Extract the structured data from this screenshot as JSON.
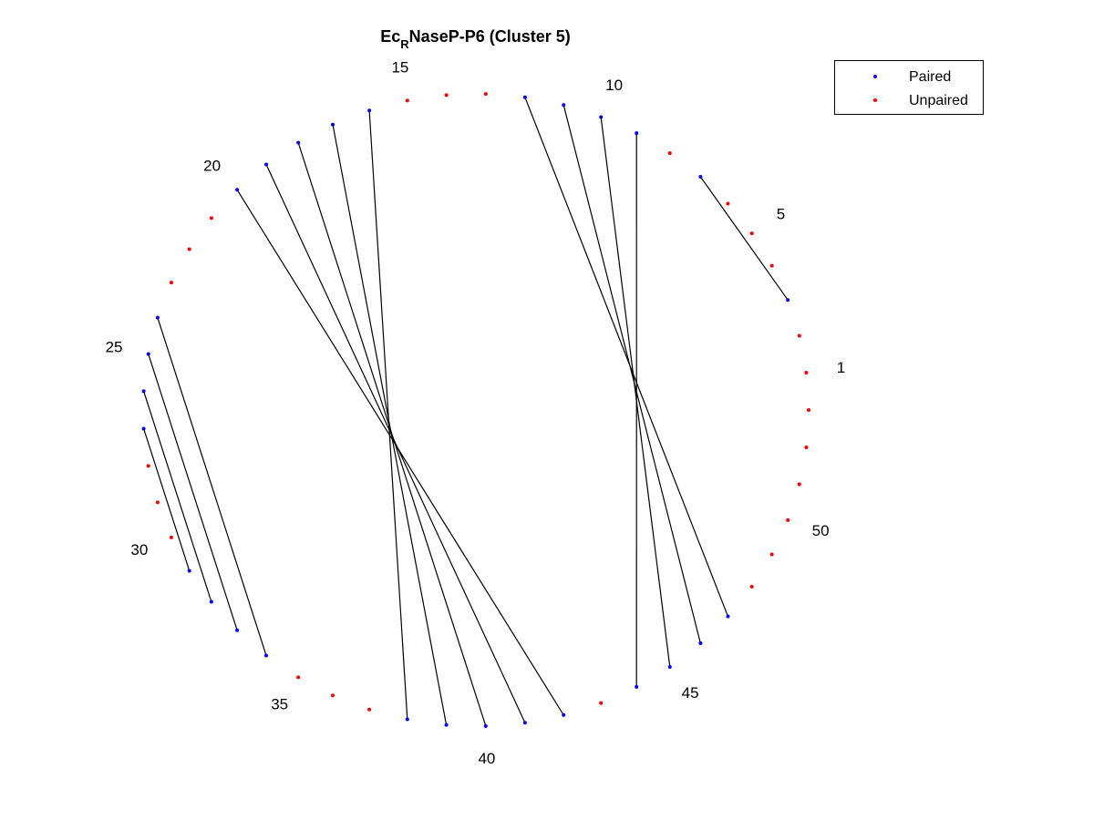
{
  "chart_data": {
    "type": "arc-diagram",
    "title_main": "Ec",
    "title_sub": "R",
    "title_rest": "NaseP-P6 (Cluster 5)",
    "legend": [
      {
        "label": "Paired",
        "color": "#0000ff"
      },
      {
        "label": "Unpaired",
        "color": "#ff0000"
      }
    ],
    "colors": {
      "paired": "#0000ff",
      "unpaired": "#ff0000",
      "line": "#000000"
    },
    "num_positions": 53,
    "position_labels": [
      1,
      5,
      10,
      15,
      20,
      25,
      30,
      35,
      40,
      45,
      50
    ],
    "pairs": [
      [
        3,
        7
      ],
      [
        9,
        44
      ],
      [
        10,
        45
      ],
      [
        11,
        46
      ],
      [
        12,
        47
      ],
      [
        16,
        38
      ],
      [
        17,
        39
      ],
      [
        18,
        40
      ],
      [
        19,
        41
      ],
      [
        20,
        42
      ],
      [
        24,
        34
      ],
      [
        25,
        33
      ],
      [
        26,
        32
      ],
      [
        27,
        31
      ]
    ]
  }
}
